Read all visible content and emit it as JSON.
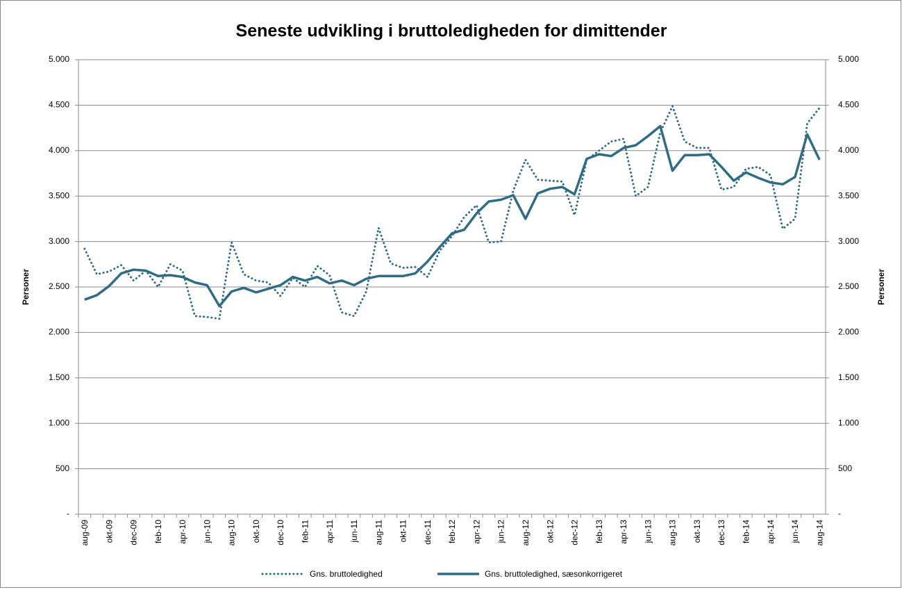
{
  "chart_data": {
    "type": "line",
    "title": "Seneste udvikling i bruttoledigheden for dimittender",
    "y_label": "Personer",
    "y2_label": "Personer",
    "categories": [
      "aug-09",
      null,
      "okt-09",
      null,
      "dec-09",
      null,
      "feb-10",
      null,
      "apr-10",
      null,
      "jun-10",
      null,
      "aug-10",
      null,
      "okt-10",
      null,
      "dec-10",
      null,
      "feb-11",
      null,
      "apr-11",
      null,
      "jun-11",
      null,
      "aug-11",
      null,
      "okt-11",
      null,
      "dec-11",
      null,
      "feb-12",
      null,
      "apr-12",
      null,
      "jun-12",
      null,
      "aug-12",
      null,
      "okt-12",
      null,
      "dec-12",
      null,
      "feb-13",
      null,
      "apr-13",
      null,
      "jun-13",
      null,
      "aug-13",
      null,
      "okt-13",
      null,
      "dec-13",
      null,
      "feb-14",
      null,
      "apr-14",
      null,
      "jun-14",
      null,
      "aug-14"
    ],
    "series": [
      {
        "name": "Gns. bruttoledighed",
        "color": "#2f6b82",
        "dash": "dotted",
        "values": [
          2920,
          2640,
          2670,
          2740,
          2570,
          2680,
          2500,
          2750,
          2680,
          2180,
          2170,
          2150,
          2990,
          2640,
          2570,
          2550,
          2400,
          2600,
          2500,
          2730,
          2630,
          2220,
          2180,
          2450,
          3150,
          2760,
          2710,
          2720,
          2610,
          2900,
          3060,
          3270,
          3400,
          2990,
          3000,
          3560,
          3900,
          3680,
          3670,
          3660,
          3290,
          3900,
          4000,
          4100,
          4130,
          3500,
          3600,
          4200,
          4490,
          4100,
          4030,
          4030,
          3570,
          3600,
          3800,
          3820,
          3730,
          3140,
          3250,
          4300,
          4470
        ]
      },
      {
        "name": "Gns. bruttoledighed, sæsonkorrigeret",
        "color": "#2f6b82",
        "dash": "solid",
        "values": [
          2360,
          2410,
          2510,
          2650,
          2690,
          2680,
          2620,
          2630,
          2610,
          2550,
          2520,
          2290,
          2450,
          2490,
          2440,
          2480,
          2520,
          2610,
          2570,
          2610,
          2540,
          2570,
          2520,
          2590,
          2620,
          2620,
          2620,
          2650,
          2780,
          2940,
          3090,
          3130,
          3310,
          3440,
          3460,
          3510,
          3250,
          3530,
          3580,
          3600,
          3520,
          3910,
          3960,
          3940,
          4030,
          4060,
          4160,
          4270,
          3780,
          3950,
          3950,
          3960,
          3820,
          3670,
          3760,
          3700,
          3650,
          3630,
          3710,
          4180,
          3900
        ]
      }
    ],
    "ylim": [
      0,
      5000
    ],
    "yticks": [
      {
        "value": 0,
        "label": "-"
      },
      500,
      {
        "value": 1000,
        "label": "1.000"
      },
      {
        "value": 1500,
        "label": "1.500"
      },
      {
        "value": 2000,
        "label": "2.000"
      },
      {
        "value": 2500,
        "label": "2.500"
      },
      {
        "value": 3000,
        "label": "3.000"
      },
      {
        "value": 3500,
        "label": "3.500"
      },
      {
        "value": 4000,
        "label": "4.000"
      },
      {
        "value": 4500,
        "label": "4.500"
      },
      {
        "value": 5000,
        "label": "5.000"
      }
    ],
    "y2lim": [
      0,
      5000
    ],
    "y2ticks": [
      {
        "value": 0,
        "label": "-"
      },
      500,
      {
        "value": 1000,
        "label": "1.000"
      },
      {
        "value": 1500,
        "label": "1.500"
      },
      {
        "value": 2000,
        "label": "2.000"
      },
      {
        "value": 2500,
        "label": "2.500"
      },
      {
        "value": 3000,
        "label": "3.000"
      },
      {
        "value": 3500,
        "label": "3.500"
      },
      {
        "value": 4000,
        "label": "4.000"
      },
      {
        "value": 4500,
        "label": "4.500"
      },
      {
        "value": 5000,
        "label": "5.000"
      }
    ],
    "grid": true,
    "legend": "bottom"
  }
}
